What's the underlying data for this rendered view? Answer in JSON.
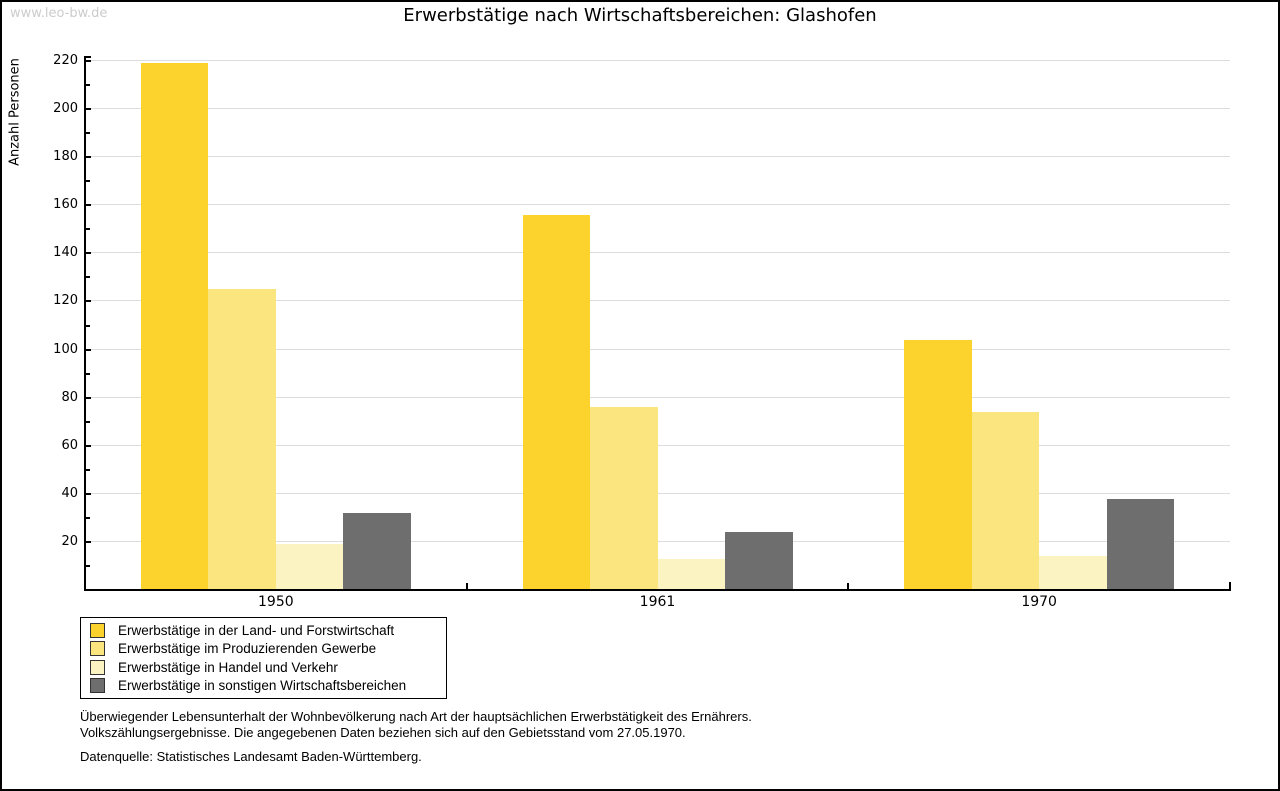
{
  "watermark": "www.leo-bw.de",
  "title": "Erwerbstätige nach Wirtschaftsbereichen: Glashofen",
  "chart_data": {
    "type": "bar",
    "title": "Erwerbstätige nach Wirtschaftsbereichen: Glashofen",
    "ylabel": "Anzahl Personen",
    "xlabel": "",
    "categories": [
      "1950",
      "1961",
      "1970"
    ],
    "series": [
      {
        "name": "Erwerbstätige in der Land- und Forstwirtschaft",
        "color": "#FCD32D",
        "values": [
          219,
          156,
          104
        ]
      },
      {
        "name": "Erwerbstätige im Produzierenden Gewerbe",
        "color": "#FBE57E",
        "values": [
          125,
          76,
          74
        ]
      },
      {
        "name": "Erwerbstätige in Handel und Verkehr",
        "color": "#FCF3C3",
        "values": [
          19,
          13,
          14
        ]
      },
      {
        "name": "Erwerbstätige in sonstigen Wirtschaftsbereichen",
        "color": "#6E6E6E",
        "values": [
          32,
          24,
          38
        ]
      }
    ],
    "ylim": [
      0,
      220
    ],
    "ytick_step": 20,
    "yminor_step": 10,
    "grid": "on",
    "legend_position": "bottom-left",
    "colors": {
      "gridline": "#DDDDDD",
      "axis": "#000000",
      "watermark": "#CCCCCC"
    }
  },
  "footer": {
    "line1": "Überwiegender Lebensunterhalt der Wohnbevölkerung nach Art der hauptsächlichen Erwerbstätigkeit des Ernährers.",
    "line2": "Volkszählungsergebnisse. Die angegebenen Daten beziehen sich auf den Gebietsstand vom 27.05.1970.",
    "source": "Datenquelle: Statistisches Landesamt Baden-Württemberg."
  }
}
